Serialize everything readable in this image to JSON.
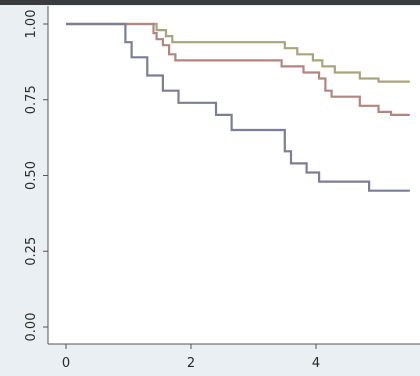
{
  "chart_data": {
    "type": "line",
    "step": true,
    "xlim": [
      -0.1,
      5.5
    ],
    "ylim": [
      0,
      1
    ],
    "xticks": [
      0,
      2,
      4
    ],
    "xtick_labels": [
      "0",
      "2",
      "4"
    ],
    "yticks": [
      0,
      0.25,
      0.5,
      0.75,
      1
    ],
    "ytick_labels": [
      "0.00",
      "0.25",
      "0.50",
      "0.75",
      "1.00"
    ],
    "grid": false,
    "title": "",
    "xlabel": "",
    "ylabel": "",
    "series": [
      {
        "color": "#a8a47c",
        "points": [
          [
            0,
            1
          ],
          [
            1.45,
            1
          ],
          [
            1.45,
            0.98
          ],
          [
            1.6,
            0.98
          ],
          [
            1.6,
            0.96
          ],
          [
            1.7,
            0.96
          ],
          [
            1.7,
            0.94
          ],
          [
            3.5,
            0.94
          ],
          [
            3.5,
            0.92
          ],
          [
            3.7,
            0.92
          ],
          [
            3.7,
            0.9
          ],
          [
            3.95,
            0.9
          ],
          [
            3.95,
            0.88
          ],
          [
            4.1,
            0.88
          ],
          [
            4.1,
            0.86
          ],
          [
            4.3,
            0.86
          ],
          [
            4.3,
            0.84
          ],
          [
            4.7,
            0.84
          ],
          [
            4.7,
            0.82
          ],
          [
            5.0,
            0.82
          ],
          [
            5.0,
            0.81
          ],
          [
            5.5,
            0.81
          ]
        ]
      },
      {
        "color": "#b0867f",
        "points": [
          [
            0,
            1
          ],
          [
            1.4,
            1
          ],
          [
            1.4,
            0.97
          ],
          [
            1.45,
            0.97
          ],
          [
            1.45,
            0.95
          ],
          [
            1.55,
            0.95
          ],
          [
            1.55,
            0.93
          ],
          [
            1.65,
            0.93
          ],
          [
            1.65,
            0.9
          ],
          [
            1.75,
            0.9
          ],
          [
            1.75,
            0.88
          ],
          [
            3.45,
            0.88
          ],
          [
            3.45,
            0.86
          ],
          [
            3.8,
            0.86
          ],
          [
            3.8,
            0.84
          ],
          [
            4.05,
            0.84
          ],
          [
            4.05,
            0.82
          ],
          [
            4.15,
            0.82
          ],
          [
            4.15,
            0.78
          ],
          [
            4.25,
            0.78
          ],
          [
            4.25,
            0.76
          ],
          [
            4.7,
            0.76
          ],
          [
            4.7,
            0.73
          ],
          [
            5.0,
            0.73
          ],
          [
            5.0,
            0.71
          ],
          [
            5.2,
            0.71
          ],
          [
            5.2,
            0.7
          ],
          [
            5.5,
            0.7
          ]
        ]
      },
      {
        "color": "#7b7e96",
        "points": [
          [
            0,
            1
          ],
          [
            0.95,
            1
          ],
          [
            0.95,
            0.94
          ],
          [
            1.05,
            0.94
          ],
          [
            1.05,
            0.89
          ],
          [
            1.3,
            0.89
          ],
          [
            1.3,
            0.83
          ],
          [
            1.55,
            0.83
          ],
          [
            1.55,
            0.78
          ],
          [
            1.8,
            0.78
          ],
          [
            1.8,
            0.74
          ],
          [
            2.4,
            0.74
          ],
          [
            2.4,
            0.7
          ],
          [
            2.65,
            0.7
          ],
          [
            2.65,
            0.65
          ],
          [
            3.5,
            0.65
          ],
          [
            3.5,
            0.58
          ],
          [
            3.6,
            0.58
          ],
          [
            3.6,
            0.54
          ],
          [
            3.85,
            0.54
          ],
          [
            3.85,
            0.51
          ],
          [
            4.05,
            0.51
          ],
          [
            4.05,
            0.48
          ],
          [
            4.85,
            0.48
          ],
          [
            4.85,
            0.45
          ],
          [
            5.5,
            0.45
          ]
        ]
      }
    ]
  }
}
